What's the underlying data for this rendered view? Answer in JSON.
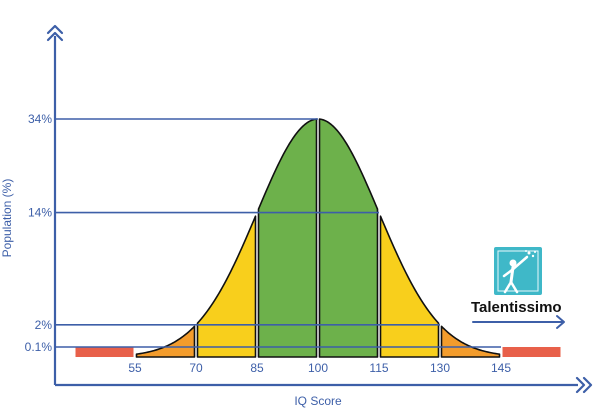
{
  "chart_data": {
    "type": "area",
    "title": "",
    "xlabel": "IQ Score",
    "ylabel": "Population (%)",
    "x_ticks": [
      55,
      70,
      85,
      100,
      115,
      130,
      145
    ],
    "y_ticks": [
      {
        "value": 0.1,
        "label": "0.1%"
      },
      {
        "value": 2,
        "label": "2%"
      },
      {
        "value": 14,
        "label": "14%"
      },
      {
        "value": 34,
        "label": "34%"
      }
    ],
    "segments": [
      {
        "from": 40,
        "to": 55,
        "population_pct": 0.1,
        "color": "#e8604a"
      },
      {
        "from": 55,
        "to": 70,
        "population_pct": 2,
        "color": "#f39c2c"
      },
      {
        "from": 70,
        "to": 85,
        "population_pct": 14,
        "color": "#f8cf1c"
      },
      {
        "from": 85,
        "to": 100,
        "population_pct": 34,
        "color": "#6db14b"
      },
      {
        "from": 100,
        "to": 115,
        "population_pct": 34,
        "color": "#6db14b"
      },
      {
        "from": 115,
        "to": 130,
        "population_pct": 14,
        "color": "#f8cf1c"
      },
      {
        "from": 130,
        "to": 145,
        "population_pct": 2,
        "color": "#f39c2c"
      },
      {
        "from": 145,
        "to": 160,
        "population_pct": 0.1,
        "color": "#e8604a"
      }
    ],
    "distribution": {
      "mean": 100,
      "sd": 15
    },
    "grid": false,
    "axis_color": "#3d5fa8"
  },
  "brand": {
    "name": "Talentissimo",
    "logo_color": "#3fb8c8"
  }
}
